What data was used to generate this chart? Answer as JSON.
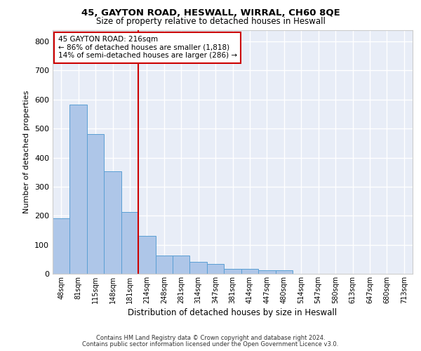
{
  "title1": "45, GAYTON ROAD, HESWALL, WIRRAL, CH60 8QE",
  "title2": "Size of property relative to detached houses in Heswall",
  "xlabel": "Distribution of detached houses by size in Heswall",
  "ylabel": "Number of detached properties",
  "categories": [
    "48sqm",
    "81sqm",
    "115sqm",
    "148sqm",
    "181sqm",
    "214sqm",
    "248sqm",
    "281sqm",
    "314sqm",
    "347sqm",
    "381sqm",
    "414sqm",
    "447sqm",
    "480sqm",
    "514sqm",
    "547sqm",
    "580sqm",
    "613sqm",
    "647sqm",
    "680sqm",
    "713sqm"
  ],
  "values": [
    192,
    583,
    481,
    352,
    212,
    130,
    63,
    62,
    40,
    33,
    17,
    16,
    11,
    11,
    0,
    0,
    0,
    0,
    0,
    0,
    0
  ],
  "bar_color": "#aec6e8",
  "bar_edge_color": "#5a9fd4",
  "vline_index": 5,
  "vline_color": "#cc0000",
  "annotation_text": "45 GAYTON ROAD: 216sqm\n← 86% of detached houses are smaller (1,818)\n14% of semi-detached houses are larger (286) →",
  "annotation_box_color": "white",
  "annotation_box_edge_color": "#cc0000",
  "ylim": [
    0,
    840
  ],
  "yticks": [
    0,
    100,
    200,
    300,
    400,
    500,
    600,
    700,
    800
  ],
  "background_color": "#e8edf7",
  "grid_color": "white",
  "footer_line1": "Contains HM Land Registry data © Crown copyright and database right 2024.",
  "footer_line2": "Contains public sector information licensed under the Open Government Licence v3.0."
}
